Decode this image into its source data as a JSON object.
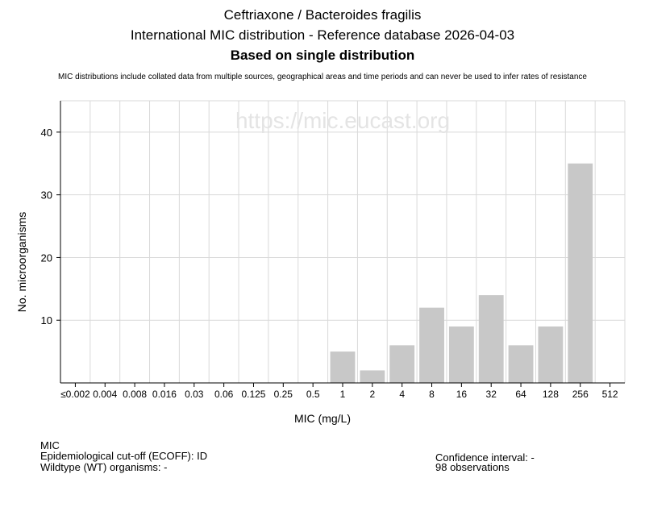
{
  "header": {
    "title_line1": "Ceftriaxone / Bacteroides fragilis",
    "title_line2": "International MIC distribution - Reference database 2026-04-03",
    "title_line3": "Based on single distribution",
    "disclaimer": "MIC distributions include collated data from multiple sources, geographical areas and time periods and can never be used to infer rates of resistance"
  },
  "watermark": "https://mic.eucast.org",
  "chart_data": {
    "type": "bar",
    "categories": [
      "≤0.002",
      "0.004",
      "0.008",
      "0.016",
      "0.03",
      "0.06",
      "0.125",
      "0.25",
      "0.5",
      "1",
      "2",
      "4",
      "8",
      "16",
      "32",
      "64",
      "128",
      "256",
      "512"
    ],
    "values": [
      0,
      0,
      0,
      0,
      0,
      0,
      0,
      0,
      0,
      5,
      2,
      6,
      12,
      9,
      14,
      6,
      9,
      35,
      0
    ],
    "title": "Ceftriaxone / Bacteroides fragilis",
    "xlabel": "MIC (mg/L)",
    "ylabel": "No. microorganisms",
    "ylim": [
      0,
      45
    ],
    "yticks": [
      10,
      20,
      30,
      40
    ],
    "grid": true,
    "bar_color": "#c8c8c8",
    "grid_color": "#d9d9d9"
  },
  "info_left": {
    "line1": "MIC",
    "line2": "Epidemiological cut-off (ECOFF): ID",
    "line3": "Wildtype (WT) organisms:  -"
  },
  "info_right": {
    "line1": "Confidence interval: -",
    "line2": "98 observations"
  }
}
